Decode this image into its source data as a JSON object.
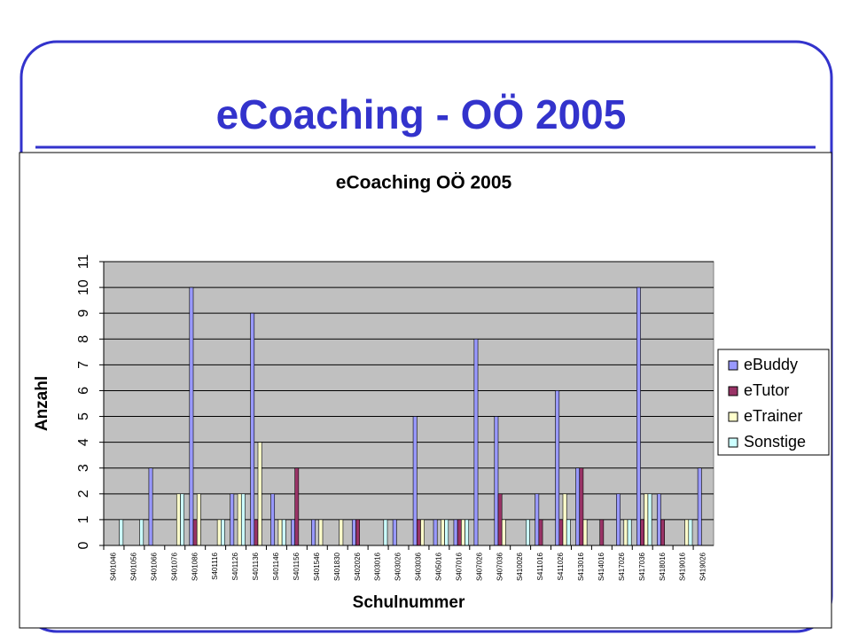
{
  "slide_title": "eCoaching - OÖ 2005",
  "chart_data": {
    "type": "bar",
    "title": "eCoaching OÖ 2005",
    "x_label": "Schulnummer",
    "y_label": "Anzahl",
    "categories": [
      "S401046",
      "S401056",
      "S401066",
      "S401076",
      "S401086",
      "S401116",
      "S401126",
      "S401136",
      "S401146",
      "S401156",
      "S401546",
      "S401830",
      "S402026",
      "S403016",
      "S403026",
      "S403036",
      "S405016",
      "S407016",
      "S407026",
      "S407036",
      "S410026",
      "S411016",
      "S411026",
      "S413016",
      "S414016",
      "S417026",
      "S417036",
      "S418016",
      "S419016",
      "S419026"
    ],
    "series": [
      {
        "name": "eBuddy",
        "color": "#9999ff",
        "values": [
          0,
          0,
          3,
          0,
          10,
          0,
          2,
          9,
          2,
          1,
          1,
          0,
          1,
          0,
          1,
          5,
          1,
          1,
          8,
          5,
          0,
          2,
          6,
          3,
          0,
          2,
          10,
          2,
          0,
          3
        ]
      },
      {
        "name": "eTutor",
        "color": "#993366",
        "values": [
          0,
          0,
          0,
          0,
          1,
          0,
          0,
          1,
          0,
          3,
          0,
          0,
          1,
          0,
          0,
          1,
          0,
          1,
          0,
          2,
          0,
          1,
          1,
          3,
          1,
          0,
          1,
          1,
          0,
          0
        ]
      },
      {
        "name": "eTrainer",
        "color": "#ffffcc",
        "values": [
          0,
          0,
          0,
          2,
          2,
          1,
          2,
          4,
          1,
          0,
          1,
          1,
          0,
          0,
          0,
          1,
          1,
          1,
          0,
          1,
          0,
          0,
          2,
          1,
          0,
          1,
          2,
          0,
          1,
          0
        ]
      },
      {
        "name": "Sonstige",
        "color": "#ccffff",
        "values": [
          1,
          1,
          0,
          2,
          0,
          1,
          2,
          0,
          1,
          0,
          0,
          0,
          0,
          1,
          0,
          0,
          1,
          1,
          0,
          0,
          1,
          0,
          1,
          0,
          0,
          1,
          2,
          0,
          1,
          0
        ]
      }
    ],
    "ylim": [
      0,
      11
    ],
    "yticks": [
      0,
      1,
      2,
      3,
      4,
      5,
      6,
      7,
      8,
      9,
      10,
      11
    ],
    "grid": true,
    "legend": "right",
    "plot_background": "#c0c0c0"
  }
}
